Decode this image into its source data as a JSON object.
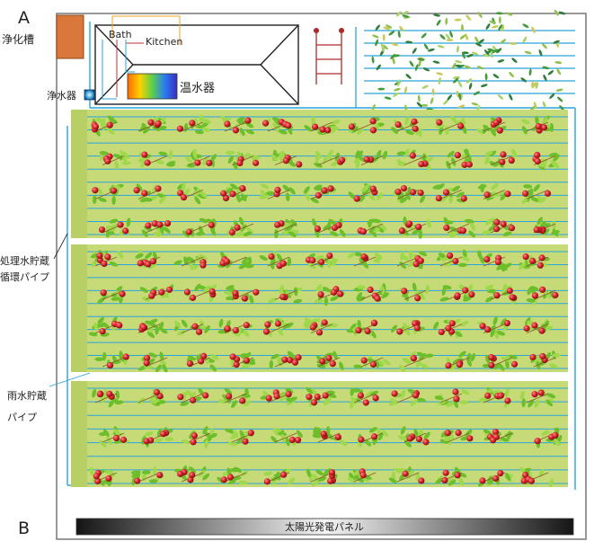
{
  "corner_labels": {
    "top": "A",
    "bottom": "B"
  },
  "labels": {
    "septic_tank": "浄化槽",
    "water_purifier": "浄水器",
    "bath": "Bath",
    "kitchen": "Kitchen",
    "water_heater": "温水器",
    "treated_water_line1": "処理水貯蔵",
    "treated_water_line2": "循環パイプ",
    "rain_water_line1": "雨水貯蔵",
    "rain_water_line2": "パイプ",
    "solar_panel": "太陽光発電パネル"
  },
  "colors": {
    "pipe_blue": "#2aa4dc",
    "bed_green": "#c6da78",
    "tank_orange": "#d9783a",
    "ladder_red": "#b02a2a",
    "tomato_red": "#d8242c",
    "leaf_green": "#6cbf2a",
    "pipe_orange": "#f0a020"
  },
  "icons": {
    "tomato": "tomato-plant-icon",
    "leaves": "scattered-leaves-icon",
    "ladder": "trellis-ladder-icon"
  }
}
